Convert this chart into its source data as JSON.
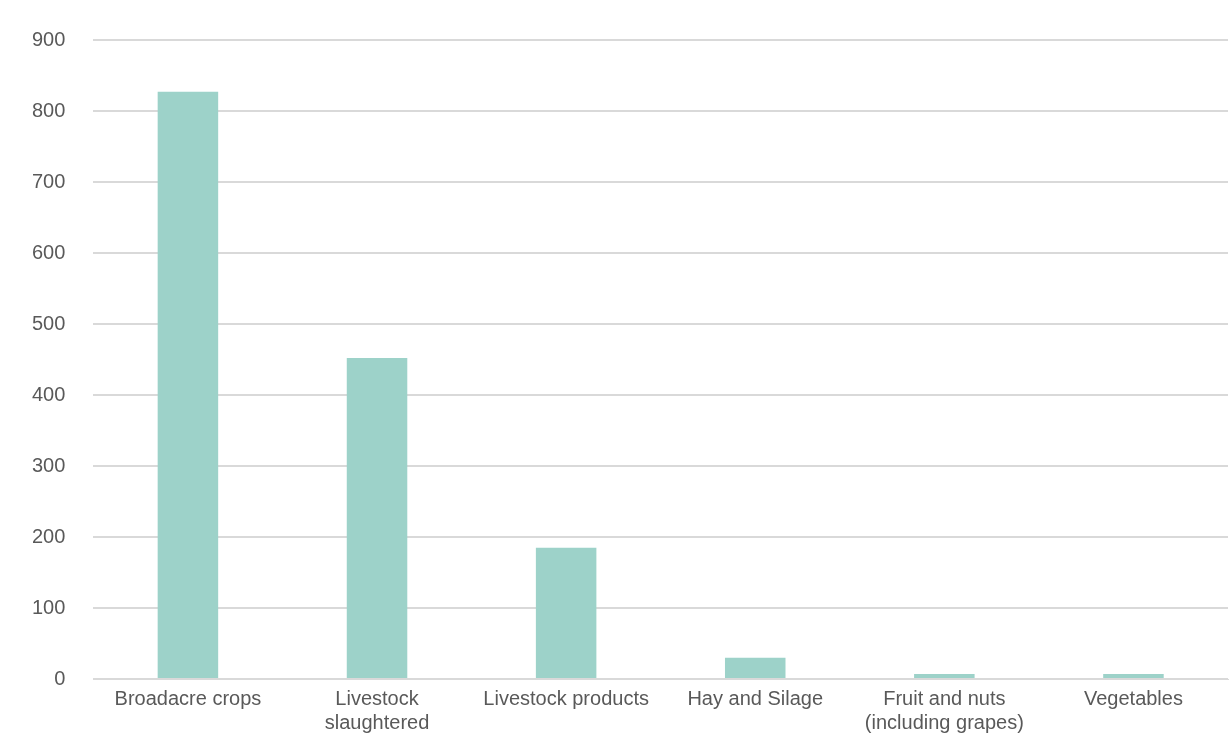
{
  "chart_data": {
    "type": "bar",
    "categories": [
      "Broadacre crops",
      "Livestock slaughtered",
      "Livestock products",
      "Hay and Silage",
      "Fruit and nuts (including grapes)",
      "Vegetables"
    ],
    "values": [
      827,
      452,
      185,
      30,
      7,
      7
    ],
    "color": "#9dd2c9",
    "ylim": [
      0,
      900
    ],
    "yticks": [
      0,
      100,
      200,
      300,
      400,
      500,
      600,
      700,
      800,
      900
    ],
    "grid": "y",
    "legend": false
  }
}
